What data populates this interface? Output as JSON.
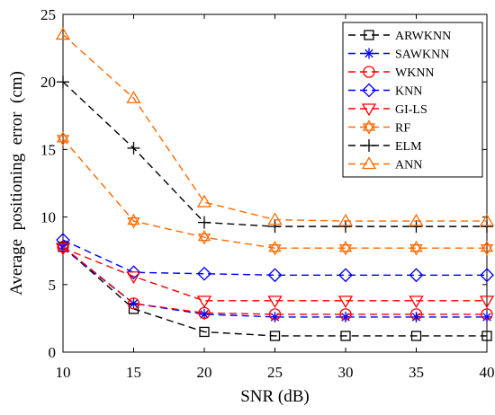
{
  "chart_data": {
    "type": "line",
    "xlabel": "SNR (dB)",
    "ylabel": "Average  positioning  error  (cm)",
    "xlim": [
      10,
      40
    ],
    "ylim": [
      0,
      25
    ],
    "xticks": [
      10,
      15,
      20,
      25,
      30,
      35,
      40
    ],
    "yticks": [
      0,
      5,
      10,
      15,
      20,
      25
    ],
    "x": [
      10,
      15,
      20,
      25,
      30,
      35,
      40
    ],
    "grid": false,
    "legend_position": "top-right",
    "series": [
      {
        "name": "ARWKNN",
        "color": "#000000",
        "marker": "square",
        "values": [
          7.8,
          3.2,
          1.5,
          1.2,
          1.2,
          1.2,
          1.2
        ]
      },
      {
        "name": "SAWKNN",
        "color": "#0000ff",
        "marker": "asterisk",
        "values": [
          7.7,
          3.6,
          2.8,
          2.6,
          2.6,
          2.6,
          2.6
        ]
      },
      {
        "name": "WKNN",
        "color": "#ff0000",
        "marker": "circle",
        "values": [
          7.8,
          3.6,
          2.9,
          2.8,
          2.8,
          2.8,
          2.8
        ]
      },
      {
        "name": "KNN",
        "color": "#0000ff",
        "marker": "diamond",
        "values": [
          8.3,
          5.9,
          5.8,
          5.7,
          5.7,
          5.7,
          5.7
        ]
      },
      {
        "name": "GI-LS",
        "color": "#ff0000",
        "marker": "triangle-down",
        "values": [
          7.7,
          5.6,
          3.8,
          3.8,
          3.8,
          3.8,
          3.8
        ]
      },
      {
        "name": "RF",
        "color": "#ff6a00",
        "marker": "hexagram",
        "values": [
          15.8,
          9.7,
          8.5,
          7.7,
          7.7,
          7.7,
          7.7
        ]
      },
      {
        "name": "ELM",
        "color": "#000000",
        "marker": "plus",
        "values": [
          20.0,
          15.1,
          9.6,
          9.3,
          9.3,
          9.3,
          9.3
        ]
      },
      {
        "name": "ANN",
        "color": "#ff6a00",
        "marker": "triangle-up",
        "values": [
          23.5,
          18.8,
          11.1,
          9.8,
          9.7,
          9.7,
          9.7
        ]
      }
    ]
  }
}
